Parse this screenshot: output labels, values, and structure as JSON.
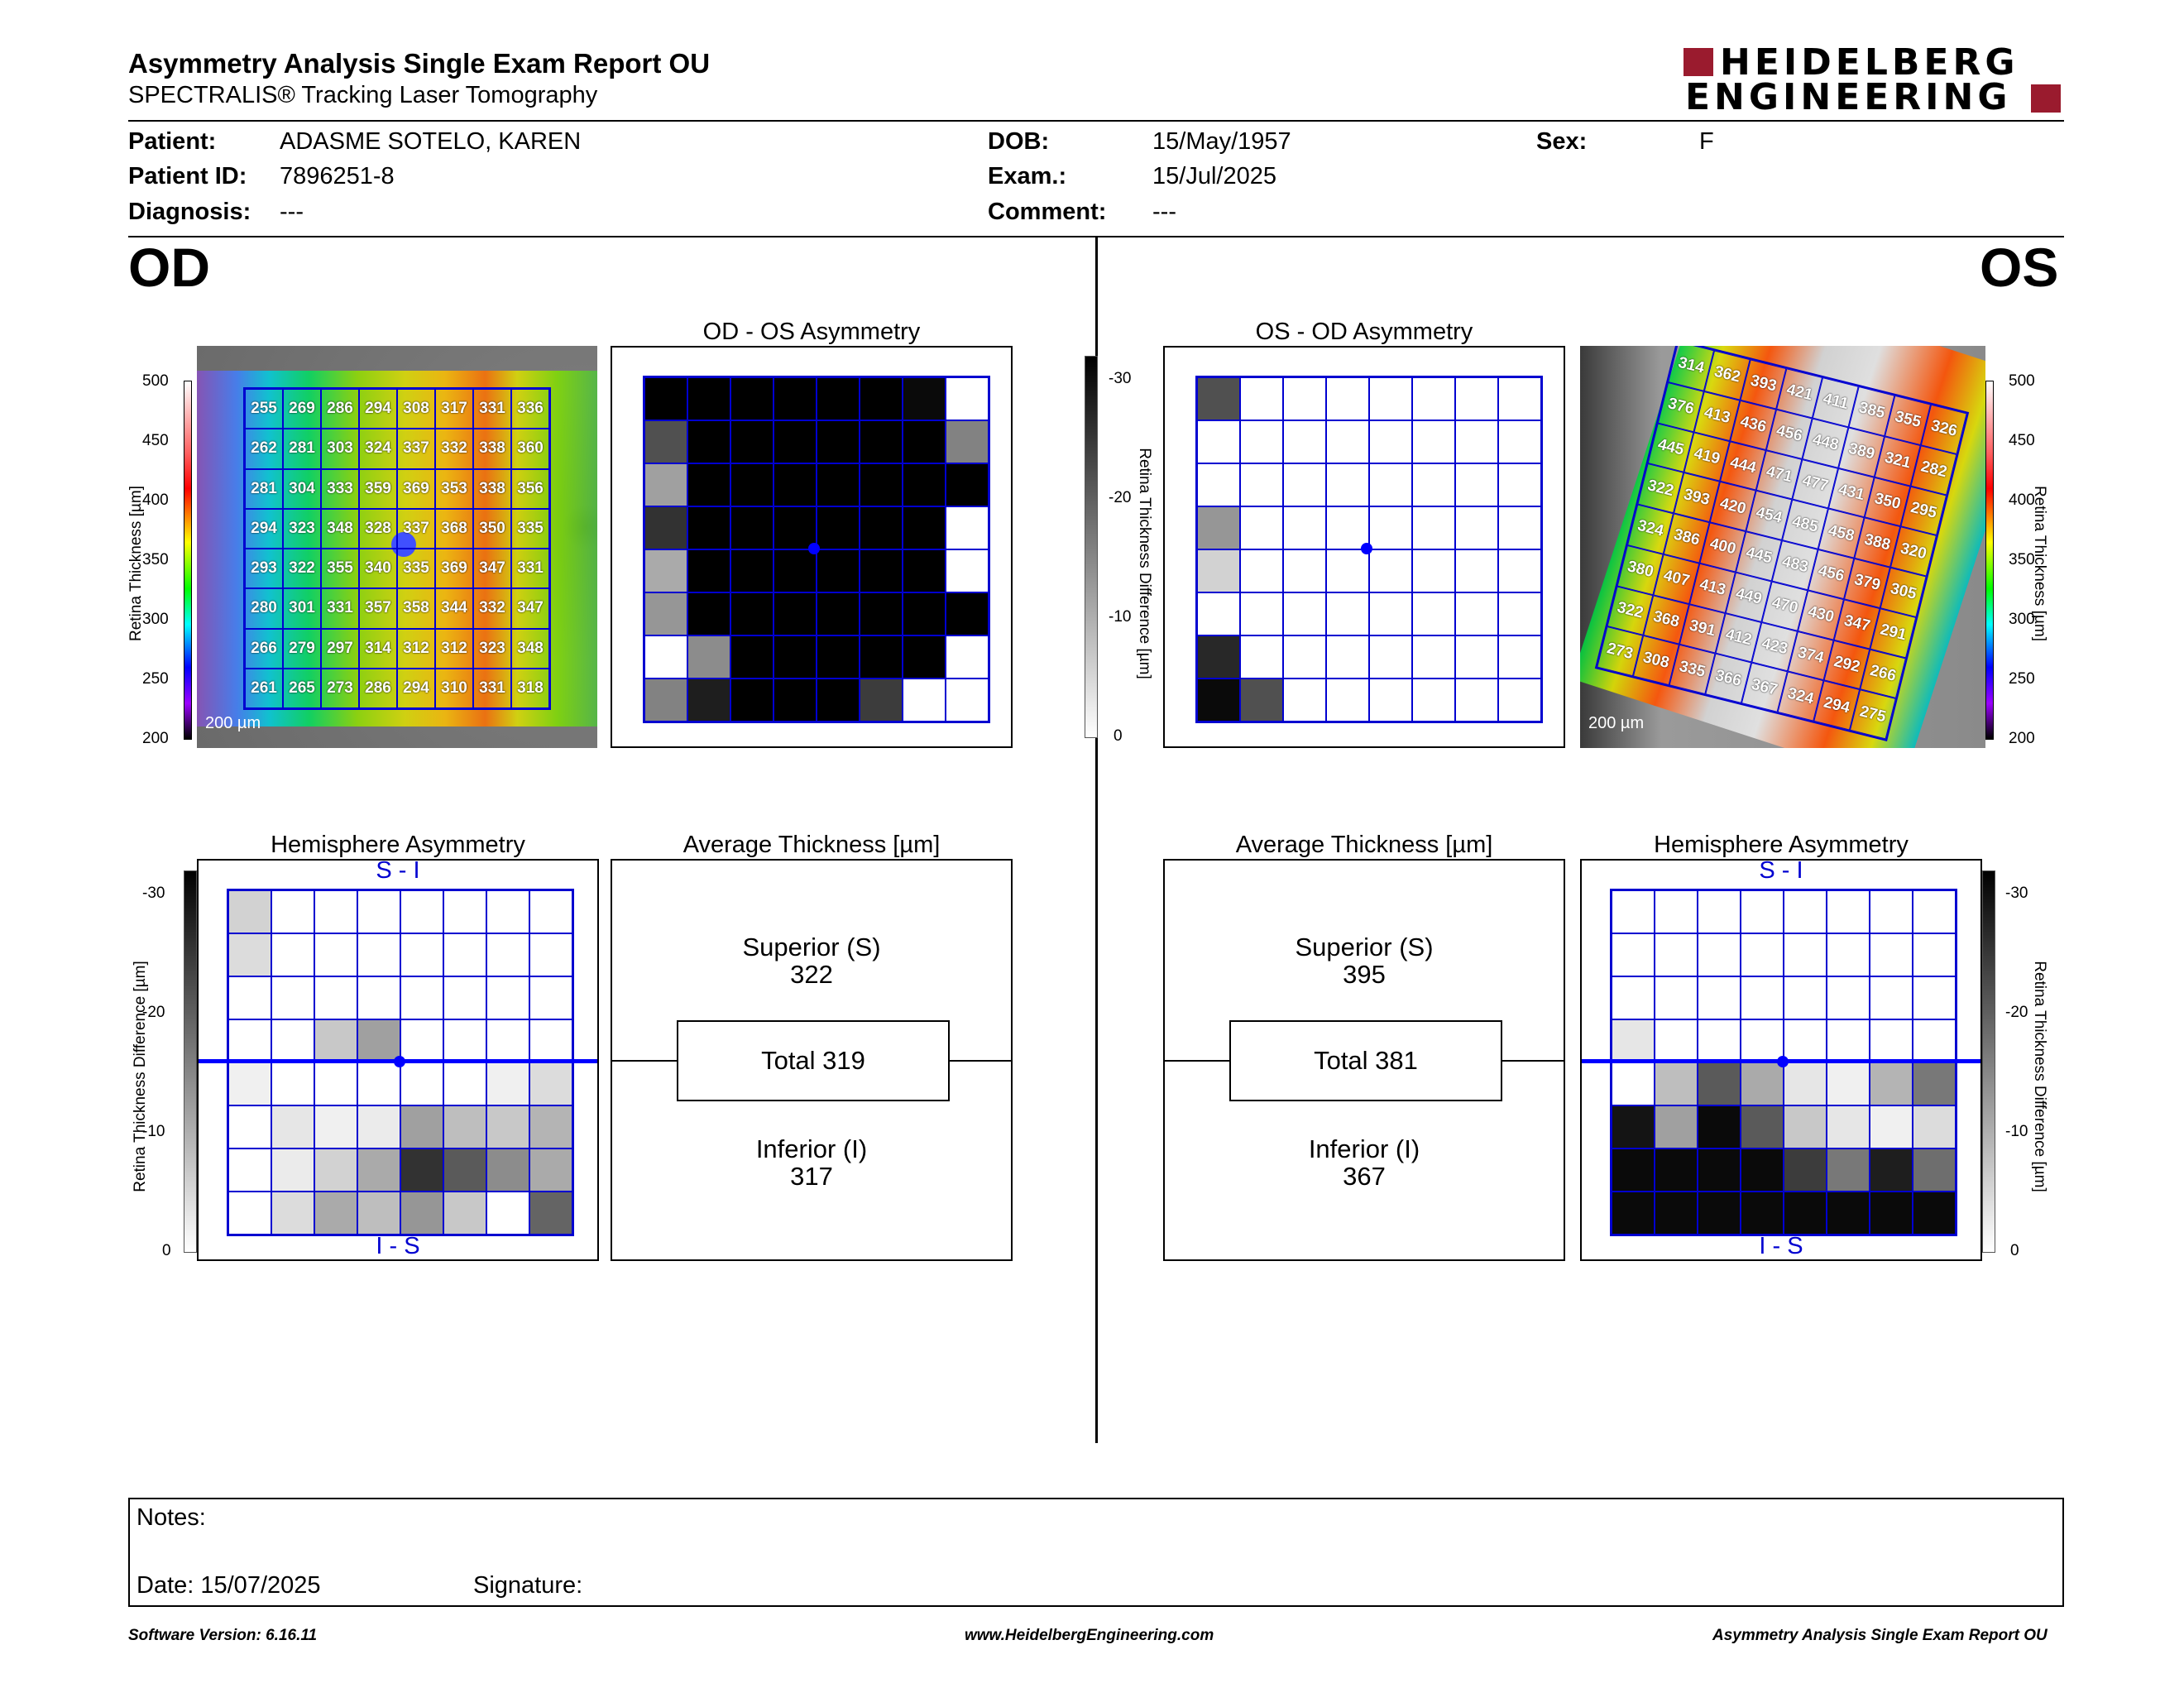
{
  "header": {
    "title": "Asymmetry Analysis Single Exam Report OU",
    "subtitle": "SPECTRALIS® Tracking Laser Tomography",
    "logo_line1": "HEIDELBERG",
    "logo_line2": "ENGINEERING"
  },
  "patient": {
    "patient_label": "Patient:",
    "patient_value": "ADASME SOTELO, KAREN",
    "id_label": "Patient ID:",
    "id_value": "7896251-8",
    "diagnosis_label": "Diagnosis:",
    "diagnosis_value": "---",
    "dob_label": "DOB:",
    "dob_value": "15/May/1957",
    "exam_label": "Exam.:",
    "exam_value": "15/Jul/2025",
    "comment_label": "Comment:",
    "comment_value": "---",
    "sex_label": "Sex:",
    "sex_value": "F"
  },
  "od": {
    "label": "OD",
    "asym_title": "OD - OS Asymmetry",
    "hemi_title": "Hemisphere Asymmetry",
    "avg_title": "Average Thickness [µm]",
    "superior_label": "Superior (S)",
    "superior_value": "322",
    "total_text": "Total 319",
    "inferior_label": "Inferior (I)",
    "inferior_value": "317",
    "scale_bar": "200 µm",
    "thickness": [
      [
        "255",
        "269",
        "286",
        "294",
        "308",
        "317",
        "331",
        "336"
      ],
      [
        "262",
        "281",
        "303",
        "324",
        "337",
        "332",
        "338",
        "360"
      ],
      [
        "281",
        "304",
        "333",
        "359",
        "369",
        "353",
        "338",
        "356"
      ],
      [
        "294",
        "323",
        "348",
        "328",
        "337",
        "368",
        "350",
        "335"
      ],
      [
        "293",
        "322",
        "355",
        "340",
        "335",
        "369",
        "347",
        "331"
      ],
      [
        "280",
        "301",
        "331",
        "357",
        "358",
        "344",
        "332",
        "347"
      ],
      [
        "266",
        "279",
        "297",
        "314",
        "312",
        "312",
        "323",
        "348"
      ],
      [
        "261",
        "265",
        "273",
        "286",
        "294",
        "310",
        "331",
        "318"
      ]
    ],
    "asym_grays": [
      [
        0,
        0,
        0,
        0,
        0,
        0,
        10,
        255
      ],
      [
        80,
        0,
        0,
        0,
        0,
        0,
        0,
        130
      ],
      [
        160,
        0,
        0,
        0,
        0,
        0,
        0,
        0
      ],
      [
        50,
        0,
        0,
        0,
        0,
        0,
        0,
        255
      ],
      [
        170,
        0,
        0,
        0,
        0,
        0,
        0,
        255
      ],
      [
        150,
        0,
        0,
        0,
        0,
        0,
        0,
        0
      ],
      [
        255,
        140,
        0,
        0,
        0,
        0,
        0,
        255
      ],
      [
        130,
        30,
        0,
        0,
        0,
        60,
        255,
        255
      ]
    ],
    "hemi_grays": [
      [
        210,
        255,
        255,
        255,
        255,
        255,
        255,
        255
      ],
      [
        220,
        255,
        255,
        255,
        255,
        255,
        255,
        255
      ],
      [
        255,
        255,
        255,
        255,
        255,
        255,
        255,
        255
      ],
      [
        255,
        255,
        200,
        160,
        255,
        255,
        255,
        255
      ],
      [
        240,
        255,
        255,
        255,
        255,
        255,
        240,
        220
      ],
      [
        255,
        230,
        240,
        235,
        160,
        190,
        200,
        180
      ],
      [
        255,
        235,
        210,
        170,
        50,
        90,
        140,
        170
      ],
      [
        255,
        220,
        170,
        190,
        150,
        200,
        255,
        100
      ]
    ]
  },
  "os": {
    "label": "OS",
    "asym_title": "OS - OD Asymmetry",
    "hemi_title": "Hemisphere Asymmetry",
    "avg_title": "Average Thickness [µm]",
    "superior_label": "Superior (S)",
    "superior_value": "395",
    "total_text": "Total 381",
    "inferior_label": "Inferior (I)",
    "inferior_value": "367",
    "scale_bar": "200 µm",
    "thickness": [
      [
        "314",
        "362",
        "393",
        "421",
        "411",
        "385",
        "355",
        "326"
      ],
      [
        "376",
        "413",
        "436",
        "456",
        "448",
        "389",
        "321",
        "282"
      ],
      [
        "445",
        "419",
        "444",
        "471",
        "477",
        "431",
        "350",
        "295"
      ],
      [
        "322",
        "393",
        "420",
        "454",
        "485",
        "458",
        "388",
        "320"
      ],
      [
        "324",
        "386",
        "400",
        "445",
        "483",
        "456",
        "379",
        "305"
      ],
      [
        "380",
        "407",
        "413",
        "449",
        "470",
        "430",
        "347",
        "291"
      ],
      [
        "322",
        "368",
        "391",
        "412",
        "423",
        "374",
        "292",
        "266"
      ],
      [
        "273",
        "308",
        "335",
        "366",
        "367",
        "324",
        "294",
        "275"
      ]
    ],
    "asym_grays": [
      [
        80,
        255,
        255,
        255,
        255,
        255,
        255,
        255
      ],
      [
        255,
        255,
        255,
        255,
        255,
        255,
        255,
        255
      ],
      [
        255,
        255,
        255,
        255,
        255,
        255,
        255,
        255
      ],
      [
        150,
        255,
        255,
        255,
        255,
        255,
        255,
        255
      ],
      [
        210,
        255,
        255,
        255,
        255,
        255,
        255,
        255
      ],
      [
        255,
        255,
        255,
        255,
        255,
        255,
        255,
        255
      ],
      [
        40,
        255,
        255,
        255,
        255,
        255,
        255,
        255
      ],
      [
        10,
        80,
        255,
        255,
        255,
        255,
        255,
        255
      ]
    ],
    "hemi_grays": [
      [
        255,
        255,
        255,
        255,
        255,
        255,
        255,
        255
      ],
      [
        255,
        255,
        255,
        255,
        255,
        255,
        255,
        255
      ],
      [
        255,
        255,
        255,
        255,
        255,
        255,
        255,
        255
      ],
      [
        230,
        255,
        255,
        255,
        255,
        255,
        255,
        255
      ],
      [
        255,
        190,
        90,
        170,
        230,
        240,
        180,
        120
      ],
      [
        20,
        160,
        10,
        90,
        200,
        230,
        240,
        220
      ],
      [
        10,
        10,
        10,
        10,
        60,
        120,
        30,
        110
      ],
      [
        10,
        10,
        10,
        10,
        10,
        10,
        10,
        10
      ]
    ]
  },
  "scales": {
    "thickness_label": "Retina  Thickness [µm]",
    "thickness_ticks": [
      "500",
      "450",
      "400",
      "350",
      "300",
      "250",
      "200"
    ],
    "diff_label": "Retina Thickness Difference [µm]",
    "diff_ticks": [
      "-30",
      "-20",
      "-10",
      "0"
    ]
  },
  "hemi_labels": {
    "top": "S - I",
    "bottom": "I - S"
  },
  "notes": {
    "notes_label": "Notes:",
    "date_text": "Date: 15/07/2025",
    "signature_label": "Signature:"
  },
  "footer": {
    "version": "Software Version: 6.16.11",
    "url": "www.HeidelbergEngineering.com",
    "report": "Asymmetry Analysis Single Exam Report OU"
  }
}
